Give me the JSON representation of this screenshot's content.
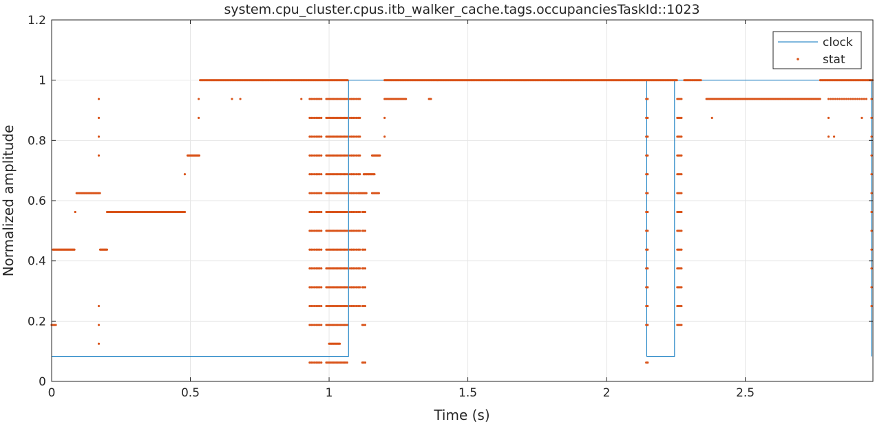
{
  "chart_data": {
    "type": "line",
    "title": "system.cpu_cluster.cpus.itb_walker_cache.tags.occupanciesTaskId::1023",
    "xlabel": "Time (s)",
    "ylabel": "Normalized amplitude",
    "xlim": [
      0,
      2.96
    ],
    "ylim": [
      0,
      1.2
    ],
    "xticks": [
      0,
      0.5,
      1,
      1.5,
      2,
      2.5
    ],
    "xtick_labels": [
      "0",
      "0.5",
      "1",
      "1.5",
      "2",
      "2.5"
    ],
    "yticks": [
      0,
      0.2,
      0.4,
      0.6,
      0.8,
      1,
      1.2
    ],
    "ytick_labels": [
      "0",
      "0.2",
      "0.4",
      "0.6",
      "0.8",
      "1",
      "1.2"
    ],
    "grid": true,
    "legend_position": "top-right",
    "colors": {
      "clock": "#0072BD",
      "stat": "#D95319",
      "grid": "#e6e6e6",
      "axis": "#262626"
    },
    "series": [
      {
        "name": "clock",
        "style": "line",
        "x": [
          0,
          1.07,
          1.07,
          2.145,
          2.145,
          2.245,
          2.245,
          2.955,
          2.955
        ],
        "y": [
          0.083,
          0.083,
          1.0,
          1.0,
          0.083,
          0.083,
          1.0,
          1.0,
          0.083
        ]
      },
      {
        "name": "stat",
        "style": "markers",
        "runs": [
          {
            "x0": 0.0,
            "x1": 0.015,
            "step": 0.005,
            "y": 0.1875
          },
          {
            "x0": 0.005,
            "x1": 0.085,
            "step": 0.0035,
            "y": 0.4375
          },
          {
            "x0": 0.085,
            "x1": 0.085,
            "step": 0.005,
            "y": 0.5625
          },
          {
            "x0": 0.09,
            "x1": 0.175,
            "step": 0.0035,
            "y": 0.625
          },
          {
            "x0": 0.175,
            "x1": 0.2,
            "step": 0.0035,
            "y": 0.4375
          },
          {
            "x0": 0.2,
            "x1": 0.48,
            "step": 0.0035,
            "y": 0.5625
          },
          {
            "x0": 0.48,
            "x1": 0.48,
            "step": 0.005,
            "y": 0.6875
          },
          {
            "x0": 0.49,
            "x1": 0.535,
            "step": 0.0035,
            "y": 0.75
          },
          {
            "x0": 0.535,
            "x1": 1.07,
            "step": 0.0035,
            "y": 1.0
          },
          {
            "x0": 1.2,
            "x1": 2.255,
            "step": 0.0035,
            "y": 1.0
          },
          {
            "x0": 2.28,
            "x1": 2.34,
            "step": 0.004,
            "y": 1.0
          },
          {
            "x0": 2.36,
            "x1": 2.77,
            "step": 0.0035,
            "y": 0.9375
          },
          {
            "x0": 2.77,
            "x1": 2.96,
            "step": 0.0035,
            "y": 1.0
          },
          {
            "x0": 2.8,
            "x1": 2.94,
            "step": 0.008,
            "y": 0.9375
          },
          {
            "x0": 1.2,
            "x1": 1.28,
            "step": 0.0035,
            "y": 0.9375
          },
          {
            "x0": 1.36,
            "x1": 1.37,
            "step": 0.0035,
            "y": 0.9375
          },
          {
            "x0": 1.155,
            "x1": 1.185,
            "step": 0.0035,
            "y": 0.75
          },
          {
            "x0": 1.125,
            "x1": 1.165,
            "step": 0.0035,
            "y": 0.6875
          },
          {
            "x0": 1.11,
            "x1": 1.135,
            "step": 0.0035,
            "y": 0.625
          },
          {
            "x0": 1.155,
            "x1": 1.18,
            "step": 0.0035,
            "y": 0.625
          },
          {
            "x0": 1.0,
            "x1": 1.04,
            "step": 0.0035,
            "y": 0.125
          }
        ],
        "columns": [
          {
            "x0": 0.93,
            "x1": 0.975,
            "step": 0.006,
            "y": [
              0.0625,
              0.1875,
              0.25,
              0.3125,
              0.375,
              0.4375,
              0.5,
              0.5625,
              0.625,
              0.6875,
              0.75,
              0.8125,
              0.875,
              0.9375
            ]
          },
          {
            "x0": 0.99,
            "x1": 1.065,
            "step": 0.005,
            "y": [
              0.0625,
              0.1875,
              0.25,
              0.3125,
              0.375,
              0.4375,
              0.5,
              0.5625,
              0.625,
              0.6875,
              0.75,
              0.8125,
              0.875,
              0.9375
            ]
          },
          {
            "x0": 1.075,
            "x1": 1.115,
            "step": 0.006,
            "y": [
              0.25,
              0.3125,
              0.375,
              0.4375,
              0.5,
              0.5625,
              0.625,
              0.6875,
              0.75,
              0.8125,
              0.875,
              0.9375
            ]
          },
          {
            "x0": 1.12,
            "x1": 1.13,
            "step": 0.005,
            "y": [
              0.0625,
              0.1875,
              0.25,
              0.3125,
              0.375,
              0.4375,
              0.5,
              0.5625
            ]
          },
          {
            "x0": 2.143,
            "x1": 2.148,
            "step": 0.005,
            "y": [
              0.0625,
              0.1875,
              0.25,
              0.3125,
              0.375,
              0.4375,
              0.5,
              0.5625,
              0.625,
              0.6875,
              0.75,
              0.8125,
              0.875,
              0.9375
            ]
          },
          {
            "x0": 2.255,
            "x1": 2.27,
            "step": 0.005,
            "y": [
              0.1875,
              0.25,
              0.3125,
              0.375,
              0.4375,
              0.5,
              0.5625,
              0.625,
              0.6875,
              0.75,
              0.8125,
              0.875,
              0.9375
            ]
          },
          {
            "x0": 2.955,
            "x1": 2.955,
            "step": 0.005,
            "y": [
              0.25,
              0.3125,
              0.375,
              0.4375,
              0.5,
              0.5625,
              0.625,
              0.6875,
              0.75,
              0.8125,
              0.875,
              0.9375
            ]
          }
        ],
        "points": [
          [
            0.17,
            0.125
          ],
          [
            0.17,
            0.1875
          ],
          [
            0.17,
            0.25
          ],
          [
            0.17,
            0.75
          ],
          [
            0.17,
            0.8125
          ],
          [
            0.17,
            0.875
          ],
          [
            0.17,
            0.9375
          ],
          [
            0.53,
            0.875
          ],
          [
            0.53,
            0.9375
          ],
          [
            0.65,
            0.9375
          ],
          [
            0.68,
            0.9375
          ],
          [
            0.9,
            0.9375
          ],
          [
            1.2,
            0.8125
          ],
          [
            1.2,
            0.875
          ],
          [
            2.38,
            0.875
          ],
          [
            2.8,
            0.8125
          ],
          [
            2.8,
            0.875
          ],
          [
            2.82,
            0.8125
          ],
          [
            2.92,
            0.875
          ]
        ]
      }
    ]
  }
}
